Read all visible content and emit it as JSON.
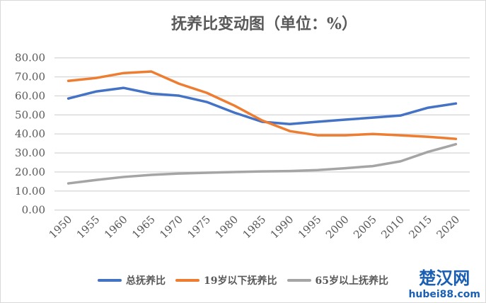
{
  "chart_data": {
    "type": "line",
    "title": "抚养比变动图（单位：%）",
    "xlabel": "",
    "ylabel": "",
    "categories": [
      "1950",
      "1955",
      "1960",
      "1965",
      "1970",
      "1975",
      "1980",
      "1985",
      "1990",
      "1995",
      "2000",
      "2005",
      "2010",
      "2015",
      "2020"
    ],
    "yticks": [
      "0.00",
      "10.00",
      "20.00",
      "30.00",
      "40.00",
      "50.00",
      "60.00",
      "70.00",
      "80.00"
    ],
    "ylim": [
      0,
      80
    ],
    "grid": true,
    "legend_position": "bottom",
    "series": [
      {
        "name": "总抚养比",
        "color": "#4472c4",
        "values": [
          58.6,
          62.3,
          64.2,
          61.2,
          60.1,
          56.8,
          51.2,
          46.4,
          45.2,
          46.4,
          47.5,
          48.6,
          49.7,
          53.8,
          56.0
        ]
      },
      {
        "name": "19岁以下抚养比",
        "color": "#ed7d31",
        "values": [
          67.9,
          69.4,
          72.0,
          72.8,
          66.4,
          61.6,
          54.9,
          47.1,
          41.5,
          39.3,
          39.3,
          40.0,
          39.3,
          38.5,
          37.4
        ]
      },
      {
        "name": "65岁以上抚养比",
        "color": "#a5a5a5",
        "values": [
          14.0,
          15.8,
          17.4,
          18.5,
          19.2,
          19.6,
          20.0,
          20.3,
          20.5,
          21.0,
          22.0,
          23.1,
          25.6,
          30.6,
          34.6
        ]
      }
    ]
  },
  "watermark": {
    "name": "楚汉网",
    "url": "hubei88.com"
  }
}
